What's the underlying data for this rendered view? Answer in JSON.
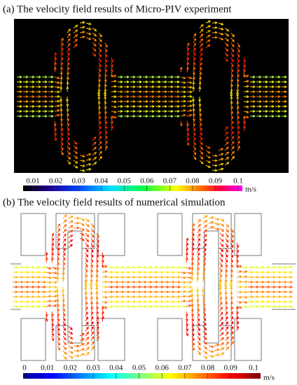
{
  "panels": [
    {
      "title": "(a) The velocity field results of Micro-PIV experiment",
      "colorbar": {
        "ticks": [
          "0.01",
          "0.02",
          "0.03",
          "0.04",
          "0.05",
          "0.06",
          "0.07",
          "0.08",
          "0.09",
          "0.1"
        ],
        "unit": "m/s"
      }
    },
    {
      "title": "(b) The velocity field results of numerical simulation",
      "colorbar": {
        "ticks": [
          "0",
          "0.01",
          "0.02",
          "0.03",
          "0.04",
          "0.05",
          "0.06",
          "0.07",
          "0.08",
          "0.09",
          "0.1"
        ],
        "unit": "m/s"
      }
    }
  ]
}
